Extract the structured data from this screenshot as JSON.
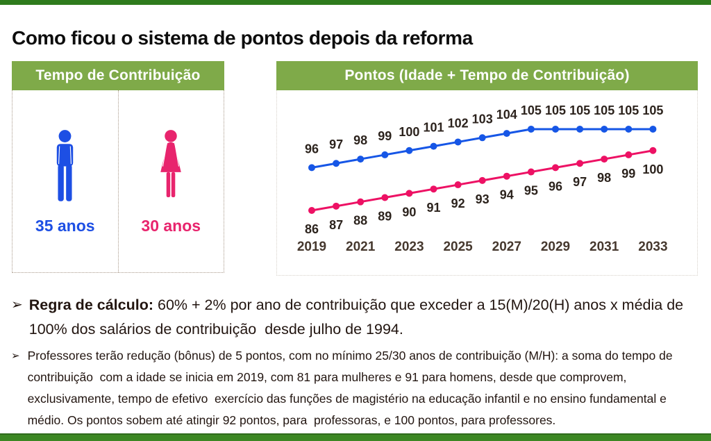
{
  "title": "Como ficou o sistema de pontos depois da reforma",
  "left_panel": {
    "header": "Tempo de Contribuição",
    "male": {
      "label": "35 anos"
    },
    "female": {
      "label": "30 anos"
    }
  },
  "right_panel": {
    "header": "Pontos (Idade + Tempo de Contribuição)"
  },
  "chart_data": {
    "type": "line",
    "x": [
      2019,
      2020,
      2021,
      2022,
      2023,
      2024,
      2025,
      2026,
      2027,
      2028,
      2029,
      2030,
      2031,
      2032,
      2033
    ],
    "x_tick_step": 2,
    "x_tick_labels": [
      "2019",
      "2021",
      "2023",
      "2025",
      "2027",
      "2029",
      "2031",
      "2033"
    ],
    "ylim": [
      84,
      107
    ],
    "grid": false,
    "legend": "none",
    "series": [
      {
        "name": "homens",
        "color": "#1656e6",
        "label_side": "above",
        "values": [
          96,
          97,
          98,
          99,
          100,
          101,
          102,
          103,
          104,
          105,
          105,
          105,
          105,
          105,
          105
        ]
      },
      {
        "name": "mulheres",
        "color": "#ed1164",
        "label_side": "below",
        "values": [
          86,
          87,
          88,
          89,
          90,
          91,
          92,
          93,
          94,
          95,
          96,
          97,
          98,
          99,
          100
        ]
      }
    ]
  },
  "bullets": [
    {
      "marker": "➢",
      "lead": "Regra de cálculo:",
      "text": "60% + 2% por ano de contribuição que exceder a 15(M)/20(H) anos x média de 100% dos salários de contribuição  desde julho de 1994."
    },
    {
      "marker": "➢",
      "lead": "",
      "text": "Professores terão redução (bônus) de 5 pontos, com no mínimo 25/30 anos de contribuição (M/H): a soma do tempo de contribuição  com a idade se inicia em 2019, com 81 para mulheres e 91 para homens, desde que comprovem, exclusivamente, tempo de efetivo  exercício das funções de magistério na educação infantil e no ensino fundamental e médio. Os pontos sobem até atingir 92 pontos, para  professoras, e 100 pontos, para professores."
    }
  ],
  "colors": {
    "green": "#7faa49",
    "bar_top": "#2e7b1d",
    "bar_bottom": "#3c8724",
    "male": "#1d4fe4",
    "female": "#e8246d"
  }
}
